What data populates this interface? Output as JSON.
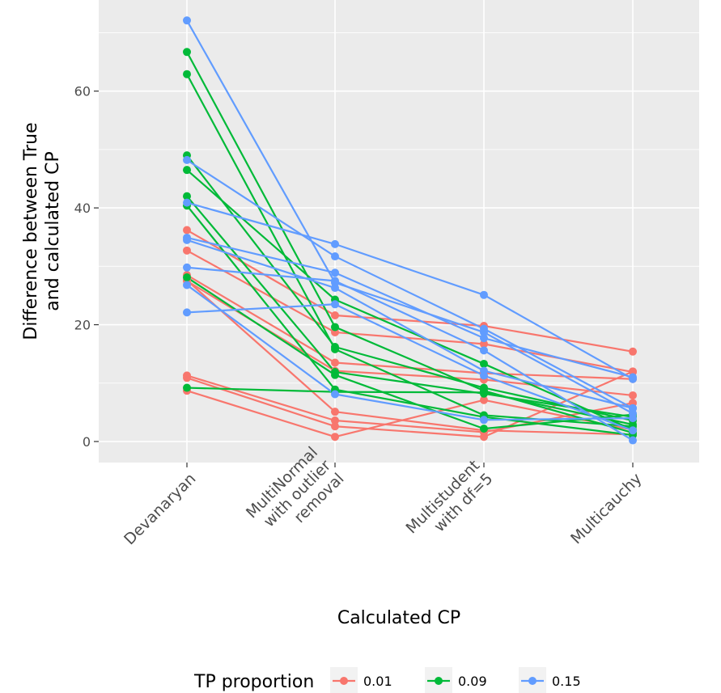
{
  "chart_data": {
    "type": "line",
    "xlabel": "Calculated CP",
    "ylabel_lines": [
      "Difference between True",
      "and calculated CP"
    ],
    "categories": [
      [
        "Devanaryan"
      ],
      [
        "MultiNormal",
        "with outlier",
        "removal"
      ],
      [
        "Multistudent",
        "with df=5"
      ],
      [
        "Multicauchy"
      ]
    ],
    "y_ticks": [
      "0",
      "20",
      "40",
      "60"
    ],
    "y_tick_values": [
      0,
      20,
      40,
      60
    ],
    "ylim": [
      -3.6,
      75.6
    ],
    "grid": true,
    "legend_title": "TP proportion",
    "legend_position": "bottom",
    "colors": {
      "0.01": "#f8766d",
      "0.09": "#00ba38",
      "0.15": "#619cff"
    },
    "groups": [
      {
        "name": "0.01",
        "lines": [
          [
            36.2,
            21.6,
            19.8,
            15.4
          ],
          [
            32.7,
            18.7,
            16.7,
            11.9
          ],
          [
            28.5,
            13.5,
            11.7,
            10.7
          ],
          [
            27.5,
            12.1,
            10.6,
            7.9
          ],
          [
            11.3,
            3.6,
            1.6,
            6.6
          ],
          [
            10.9,
            2.6,
            0.8,
            12.0
          ],
          [
            8.7,
            0.8,
            7.1,
            2.0
          ],
          [
            27.6,
            5.1,
            1.9,
            1.2
          ]
        ]
      },
      {
        "name": "0.09",
        "lines": [
          [
            66.7,
            19.6,
            8.7,
            1.5
          ],
          [
            62.9,
            15.8,
            4.5,
            2.6
          ],
          [
            49.0,
            16.2,
            9.2,
            3.6
          ],
          [
            46.5,
            24.3,
            13.3,
            2.0
          ],
          [
            42.0,
            11.9,
            8.2,
            4.2
          ],
          [
            40.4,
            8.9,
            4.2,
            1.1
          ],
          [
            28.1,
            11.4,
            2.2,
            4.6
          ],
          [
            9.2,
            8.5,
            8.4,
            2.9
          ]
        ]
      },
      {
        "name": "0.15",
        "lines": [
          [
            72.1,
            27.2,
            18.7,
            4.8
          ],
          [
            48.2,
            31.7,
            19.3,
            5.7
          ],
          [
            40.9,
            33.8,
            25.1,
            10.7
          ],
          [
            34.9,
            28.9,
            17.7,
            11.0
          ],
          [
            34.5,
            26.3,
            12.1,
            5.7
          ],
          [
            29.8,
            27.5,
            15.6,
            0.2
          ],
          [
            26.8,
            8.1,
            3.7,
            4.0
          ],
          [
            22.1,
            23.5,
            11.3,
            1.9
          ]
        ]
      }
    ]
  }
}
